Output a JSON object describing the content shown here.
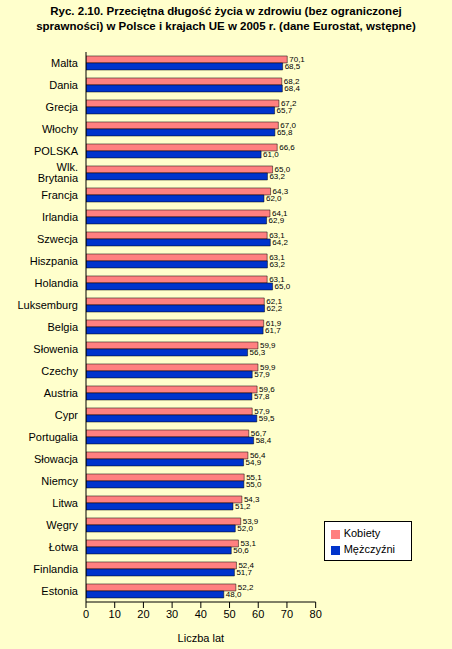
{
  "chart_data": {
    "type": "bar",
    "orientation": "horizontal",
    "title": "Ryc. 2.10. Przeciętna długość życia w zdrowiu (bez ograniczonej sprawności) w Polsce i krajach UE w 2005 r. (dane Eurostat, wstępne)",
    "xlabel": "Liczba lat",
    "categories": [
      "Malta",
      "Dania",
      "Grecja",
      "Włochy",
      "POLSKA",
      "Wlk. Brytania",
      "Francja",
      "Irlandia",
      "Szwecja",
      "Hiszpania",
      "Holandia",
      "Luksemburg",
      "Belgia",
      "Słowenia",
      "Czechy",
      "Austria",
      "Cypr",
      "Portugalia",
      "Słowacja",
      "Niemcy",
      "Litwa",
      "Węgry",
      "Łotwa",
      "Finlandia",
      "Estonia"
    ],
    "series": [
      {
        "name": "Kobiety",
        "color": "#ff8080",
        "values": [
          70.1,
          68.2,
          67.2,
          67.0,
          66.6,
          65.0,
          64.3,
          64.1,
          63.1,
          63.1,
          63.1,
          62.1,
          61.9,
          59.9,
          59.9,
          59.6,
          57.9,
          56.7,
          56.4,
          55.1,
          54.3,
          53.9,
          53.1,
          52.4,
          52.2
        ],
        "value_labels": [
          "70,1",
          "68,2",
          "67,2",
          "67,0",
          "66,6",
          "65,0",
          "64,3",
          "64,1",
          "63,1",
          "63,1",
          "63,1",
          "62,1",
          "61,9",
          "59,9",
          "59,9",
          "59,6",
          "57,9",
          "56,7",
          "56,4",
          "55,1",
          "54,3",
          "53,9",
          "53,1",
          "52,4",
          "52,2"
        ]
      },
      {
        "name": "Mężczyźni",
        "color": "#0033cc",
        "values": [
          68.5,
          68.4,
          65.7,
          65.8,
          61.0,
          63.2,
          62.0,
          62.9,
          64.2,
          63.2,
          65.0,
          62.2,
          61.7,
          56.3,
          57.9,
          57.8,
          59.5,
          58.4,
          54.9,
          55.0,
          51.2,
          52.0,
          50.6,
          51.7,
          48.0
        ],
        "value_labels": [
          "68,5",
          "68,4",
          "65,7",
          "65,8",
          "61,0",
          "63,2",
          "62,0",
          "62,9",
          "64,2",
          "63,2",
          "65,0",
          "62,2",
          "61,7",
          "56,3",
          "57,9",
          "57,8",
          "59,5",
          "58,4",
          "54,9",
          "55,0",
          "51,2",
          "52,0",
          "50,6",
          "51,7",
          "48,0"
        ]
      }
    ],
    "xlim": [
      0,
      80
    ],
    "xticks": [
      0,
      10,
      20,
      30,
      40,
      50,
      60,
      70,
      80
    ],
    "data_labels": true,
    "legend": "lower right",
    "grid": false
  }
}
